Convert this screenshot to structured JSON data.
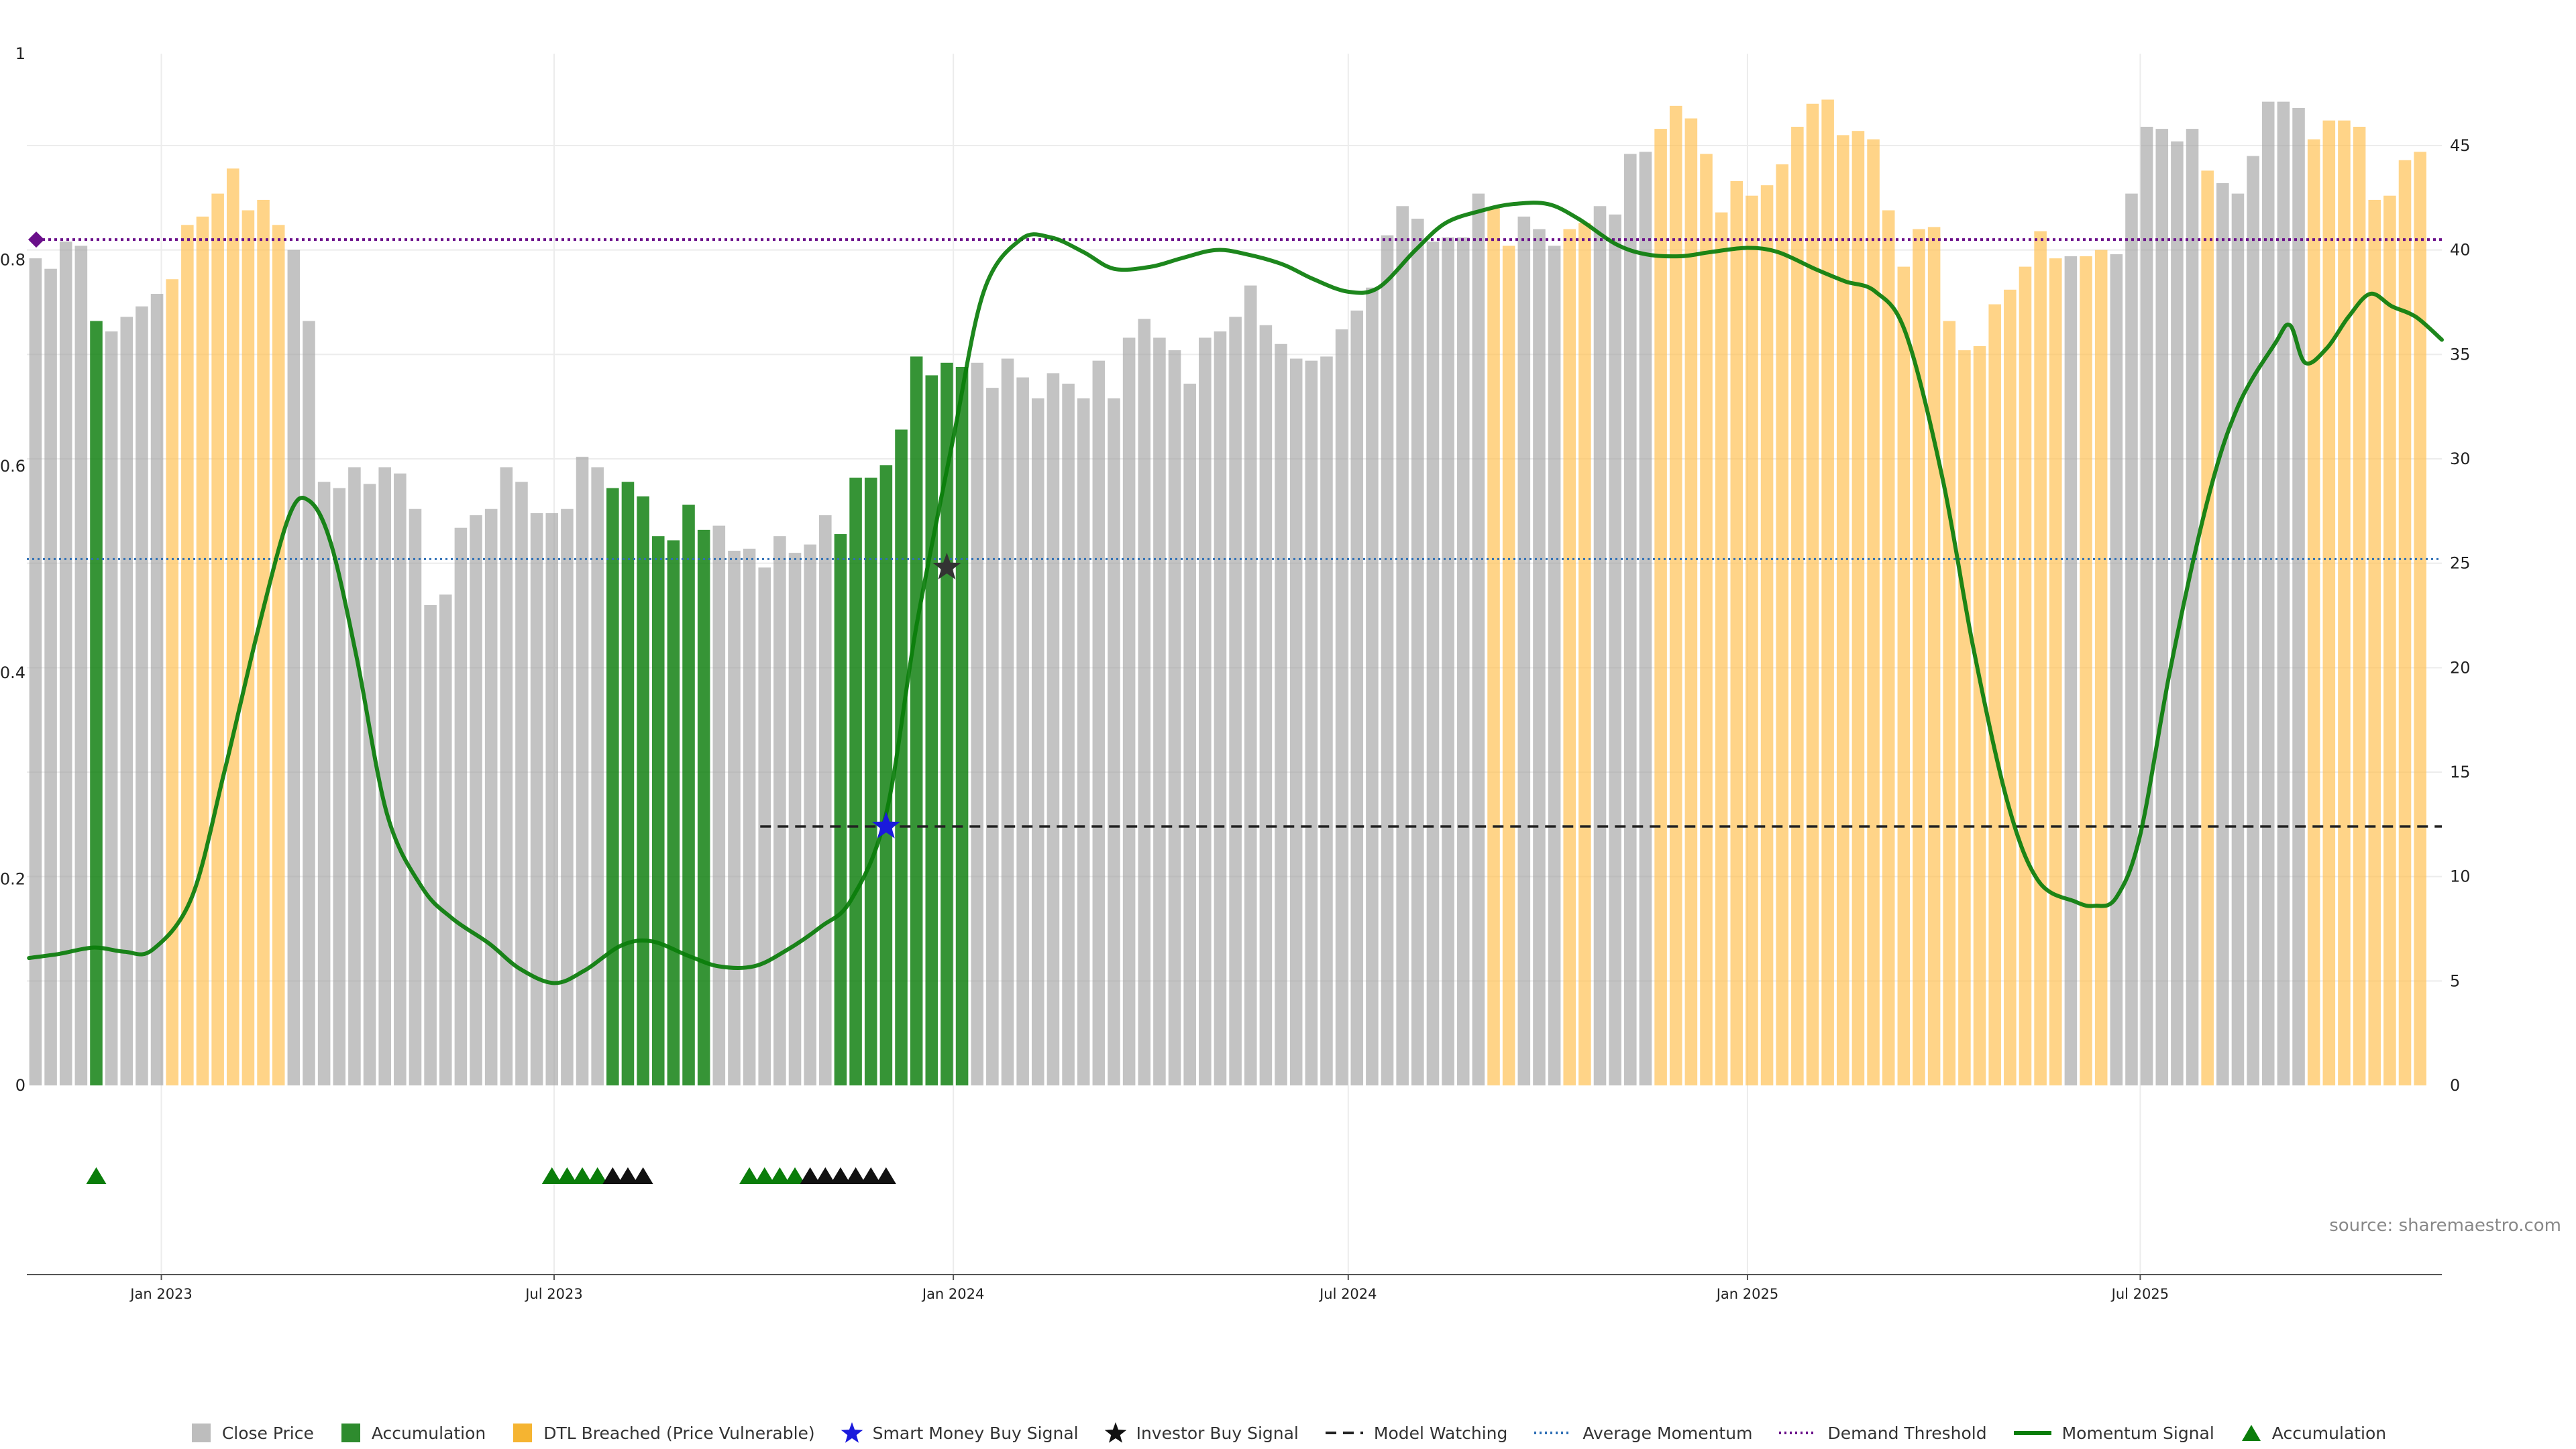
{
  "chart_data": {
    "type": "bar",
    "title": "",
    "xlabel": "",
    "ylabel": "",
    "left_axis": {
      "ylim": [
        0,
        1
      ],
      "ticks": [
        0,
        0.2,
        0.4,
        0.6,
        0.8,
        1
      ],
      "tick_labels": [
        "0",
        "0.2",
        "0.4",
        "0.6",
        "0.8",
        "1"
      ]
    },
    "right_axis": {
      "ylim": [
        0,
        49.4
      ],
      "ticks": [
        0,
        5,
        10,
        15,
        20,
        25,
        30,
        35,
        40,
        45
      ],
      "tick_labels": [
        "0",
        "5",
        "10",
        "15",
        "20",
        "25",
        "30",
        "35",
        "40",
        "45"
      ]
    },
    "grid": true,
    "x_range": [
      "2022-10-31",
      "2025-11-17"
    ],
    "x_ticks": [
      {
        "date": "2023-01-01",
        "label": "Jan 2023"
      },
      {
        "date": "2023-07-01",
        "label": "Jul 2023"
      },
      {
        "date": "2024-01-01",
        "label": "Jan 2024"
      },
      {
        "date": "2024-07-01",
        "label": "Jul 2024"
      },
      {
        "date": "2025-01-01",
        "label": "Jan 2025"
      },
      {
        "date": "2025-07-01",
        "label": "Jul 2025"
      }
    ],
    "bars": {
      "start_date": "2022-11-04",
      "interval_days": 7,
      "colors": {
        "g": "#9e9e9e",
        "a": "#0a7d0a",
        "d": "#ffc050"
      },
      "values": [
        39.6,
        39.1,
        40.4,
        40.2,
        36.6,
        36.1,
        36.8,
        37.3,
        37.9,
        38.6,
        41.2,
        41.6,
        42.7,
        43.9,
        41.9,
        42.4,
        41.2,
        40.0,
        36.6,
        28.9,
        28.6,
        29.6,
        28.8,
        29.6,
        29.3,
        27.6,
        23.0,
        23.5,
        26.7,
        27.3,
        27.6,
        29.6,
        28.9,
        27.4,
        27.4,
        27.6,
        30.1,
        29.6,
        28.6,
        28.9,
        28.2,
        26.3,
        26.1,
        27.8,
        26.6,
        26.8,
        25.6,
        25.7,
        24.8,
        26.3,
        25.5,
        25.9,
        27.3,
        26.4,
        29.1,
        29.1,
        29.7,
        31.4,
        34.9,
        34.0,
        34.6,
        34.4,
        34.6,
        33.4,
        34.8,
        33.9,
        32.9,
        34.1,
        33.6,
        32.9,
        34.7,
        32.9,
        35.8,
        36.7,
        35.8,
        35.2,
        33.6,
        35.8,
        36.1,
        36.8,
        38.3,
        36.4,
        35.5,
        34.8,
        34.7,
        34.9,
        36.2,
        37.1,
        38.2,
        40.7,
        42.1,
        41.5,
        40.4,
        40.6,
        40.6,
        42.7,
        42.0,
        40.2,
        41.6,
        41.0,
        40.2,
        41.0,
        41.3,
        42.1,
        41.7,
        44.6,
        44.7,
        45.8,
        46.9,
        46.3,
        44.6,
        41.8,
        43.3,
        42.6,
        43.1,
        44.1,
        45.9,
        47.0,
        47.2,
        45.5,
        45.7,
        45.3,
        41.9,
        39.2,
        41.0,
        41.1,
        36.6,
        35.2,
        35.4,
        37.4,
        38.1,
        39.2,
        40.9,
        39.6,
        39.7,
        39.7,
        40.0,
        39.8,
        42.7,
        45.9,
        45.8,
        45.2,
        45.8,
        43.8,
        43.2,
        42.7,
        44.5,
        47.1,
        47.1,
        46.8,
        45.3,
        46.2,
        46.2,
        45.9,
        42.4,
        42.6,
        44.3,
        44.7
      ],
      "series_key": "ggggaggggddddddddgggggggggggggggggggggaaaaaaaggggggggaaaaaaaaaggggggggggggggggggggggggggggggggggddgggddggggdddddddddddddddddddddddddddgddggggggdggggggddddddddddddddddddd"
    },
    "momentum_signal": {
      "name": "Momentum Signal",
      "color": "#0a7d0a",
      "points": [
        [
          "2022-11-01",
          6.1
        ],
        [
          "2022-11-15",
          6.3
        ],
        [
          "2022-12-01",
          6.6
        ],
        [
          "2022-12-15",
          6.4
        ],
        [
          "2022-12-28",
          6.5
        ],
        [
          "2023-01-15",
          9.0
        ],
        [
          "2023-01-30",
          15.0
        ],
        [
          "2023-02-15",
          22.0
        ],
        [
          "2023-03-01",
          27.3
        ],
        [
          "2023-03-10",
          28.0
        ],
        [
          "2023-03-20",
          26.0
        ],
        [
          "2023-04-01",
          20.5
        ],
        [
          "2023-04-15",
          13.0
        ],
        [
          "2023-05-01",
          9.5
        ],
        [
          "2023-05-15",
          8.0
        ],
        [
          "2023-06-01",
          6.8
        ],
        [
          "2023-06-15",
          5.6
        ],
        [
          "2023-07-01",
          4.9
        ],
        [
          "2023-07-15",
          5.5
        ],
        [
          "2023-08-01",
          6.7
        ],
        [
          "2023-08-15",
          6.9
        ],
        [
          "2023-09-01",
          6.2
        ],
        [
          "2023-09-15",
          5.7
        ],
        [
          "2023-10-01",
          5.7
        ],
        [
          "2023-10-15",
          6.4
        ],
        [
          "2023-11-01",
          7.6
        ],
        [
          "2023-11-15",
          8.9
        ],
        [
          "2023-12-01",
          13.0
        ],
        [
          "2023-12-15",
          22.0
        ],
        [
          "2024-01-01",
          31.0
        ],
        [
          "2024-01-15",
          38.0
        ],
        [
          "2024-02-01",
          40.5
        ],
        [
          "2024-02-15",
          40.6
        ],
        [
          "2024-03-01",
          39.9
        ],
        [
          "2024-03-15",
          39.1
        ],
        [
          "2024-04-01",
          39.2
        ],
        [
          "2024-04-15",
          39.6
        ],
        [
          "2024-05-01",
          40.0
        ],
        [
          "2024-05-15",
          39.8
        ],
        [
          "2024-06-01",
          39.3
        ],
        [
          "2024-06-15",
          38.6
        ],
        [
          "2024-07-01",
          38.0
        ],
        [
          "2024-07-15",
          38.2
        ],
        [
          "2024-08-01",
          40.0
        ],
        [
          "2024-08-15",
          41.3
        ],
        [
          "2024-09-01",
          41.9
        ],
        [
          "2024-09-15",
          42.2
        ],
        [
          "2024-10-01",
          42.2
        ],
        [
          "2024-10-15",
          41.5
        ],
        [
          "2024-11-01",
          40.3
        ],
        [
          "2024-11-15",
          39.8
        ],
        [
          "2024-12-01",
          39.7
        ],
        [
          "2024-12-15",
          39.9
        ],
        [
          "2025-01-01",
          40.1
        ],
        [
          "2025-01-15",
          39.9
        ],
        [
          "2025-02-01",
          39.1
        ],
        [
          "2025-02-15",
          38.5
        ],
        [
          "2025-03-01",
          38.0
        ],
        [
          "2025-03-15",
          36.0
        ],
        [
          "2025-04-01",
          29.0
        ],
        [
          "2025-04-15",
          21.0
        ],
        [
          "2025-05-01",
          13.5
        ],
        [
          "2025-05-15",
          9.8
        ],
        [
          "2025-06-01",
          8.8
        ],
        [
          "2025-06-10",
          8.6
        ],
        [
          "2025-06-20",
          9.0
        ],
        [
          "2025-07-01",
          12.0
        ],
        [
          "2025-07-15",
          20.0
        ],
        [
          "2025-08-01",
          28.0
        ],
        [
          "2025-08-15",
          32.5
        ],
        [
          "2025-09-01",
          35.5
        ],
        [
          "2025-09-08",
          36.4
        ],
        [
          "2025-09-15",
          34.6
        ],
        [
          "2025-09-25",
          35.3
        ],
        [
          "2025-10-05",
          36.8
        ],
        [
          "2025-10-15",
          37.9
        ],
        [
          "2025-10-25",
          37.3
        ],
        [
          "2025-11-05",
          36.8
        ],
        [
          "2025-11-17",
          35.7
        ]
      ]
    },
    "average_momentum": {
      "name": "Average Momentum",
      "value": 25.2,
      "color": "#2e6fb5"
    },
    "demand_threshold": {
      "name": "Demand Threshold",
      "value": 40.5,
      "color": "#6a0f8a"
    },
    "model_watching": {
      "name": "Model Watching",
      "value": 12.4,
      "from": "2023-10-04",
      "to": "2025-11-17",
      "color": "#222222"
    },
    "signals": [
      {
        "type": "Smart Money Buy Signal",
        "date": "2023-12-01",
        "value": 12.4,
        "color": "#1a1adc"
      },
      {
        "type": "Investor Buy Signal",
        "date": "2023-12-29",
        "value": 24.8,
        "color": "#333333"
      }
    ],
    "accumulation_markers": {
      "name": "Accumulation",
      "green": [
        "2022-12-02",
        "2023-06-30",
        "2023-07-07",
        "2023-07-14",
        "2023-07-21",
        "2023-09-29",
        "2023-10-06",
        "2023-10-13",
        "2023-10-20"
      ],
      "black": [
        "2023-07-28",
        "2023-08-04",
        "2023-08-11",
        "2023-10-27",
        "2023-11-03",
        "2023-11-10",
        "2023-11-17",
        "2023-11-24",
        "2023-12-01"
      ]
    },
    "source_text": "source: sharemaestro.com",
    "legend": [
      {
        "label": "Close Price",
        "kind": "square",
        "color": "#bdbdbd"
      },
      {
        "label": "Accumulation",
        "kind": "square",
        "color": "#2e8b2e"
      },
      {
        "label": "DTL Breached (Price Vulnerable)",
        "kind": "square",
        "color": "#f5b431"
      },
      {
        "label": "Smart Money Buy Signal",
        "kind": "star",
        "color": "#1a1adc"
      },
      {
        "label": "Investor Buy Signal",
        "kind": "star",
        "color": "#111111"
      },
      {
        "label": "Model Watching",
        "kind": "dash",
        "color": "#222222"
      },
      {
        "label": "Average Momentum",
        "kind": "dot",
        "color": "#2e6fb5"
      },
      {
        "label": "Demand Threshold",
        "kind": "dot",
        "color": "#6a0f8a"
      },
      {
        "label": "Momentum Signal",
        "kind": "line",
        "color": "#0a7d0a"
      },
      {
        "label": "Accumulation",
        "kind": "triangle",
        "color": "#0a7d0a"
      }
    ]
  }
}
